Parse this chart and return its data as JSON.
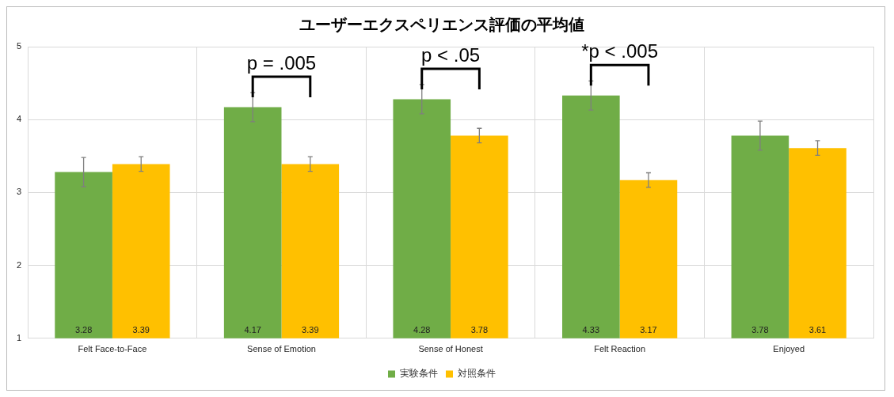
{
  "chart_data": {
    "type": "bar",
    "title": "ユーザーエクスペリエンス評価の平均値",
    "categories": [
      "Felt Face-to-Face",
      "Sense of Emotion",
      "Sense of Honest",
      "Felt Reaction",
      "Enjoyed"
    ],
    "series": [
      {
        "name": "実験条件",
        "color": "#70ad47",
        "values": [
          3.28,
          4.17,
          4.28,
          4.33,
          3.78
        ],
        "errors": [
          0.2,
          0.2,
          0.2,
          0.2,
          0.2
        ]
      },
      {
        "name": "対照条件",
        "color": "#ffc000",
        "values": [
          3.39,
          3.39,
          3.78,
          3.17,
          3.61
        ],
        "errors": [
          0.1,
          0.1,
          0.1,
          0.1,
          0.1
        ]
      }
    ],
    "ylim": [
      1,
      5
    ],
    "yticks": [
      1,
      2,
      3,
      4,
      5
    ],
    "grid": true,
    "legend": "bottom",
    "data_labels": true,
    "annotations": [
      "p = .005",
      "p < .05",
      "*p < .005"
    ]
  }
}
